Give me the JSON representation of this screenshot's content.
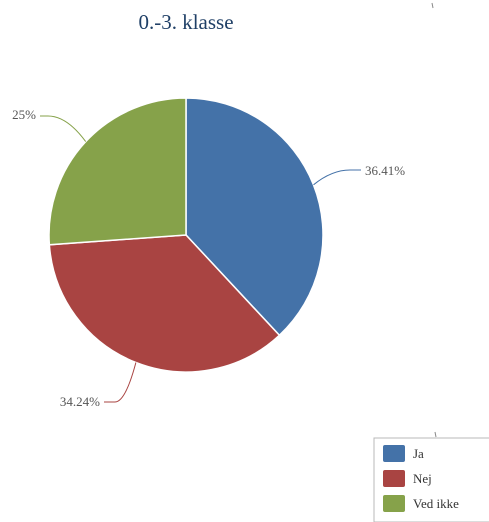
{
  "chart_data": {
    "type": "pie",
    "title": "0.-3. klasse",
    "categories": [
      "Ja",
      "Nej",
      "Ved ikke"
    ],
    "values": [
      36.41,
      34.24,
      25
    ],
    "labels": [
      "36.41%",
      "34.24%",
      "25%"
    ],
    "colors": [
      "#4472a8",
      "#a94442",
      "#86a24a"
    ],
    "legend_position": "bottom-right"
  }
}
